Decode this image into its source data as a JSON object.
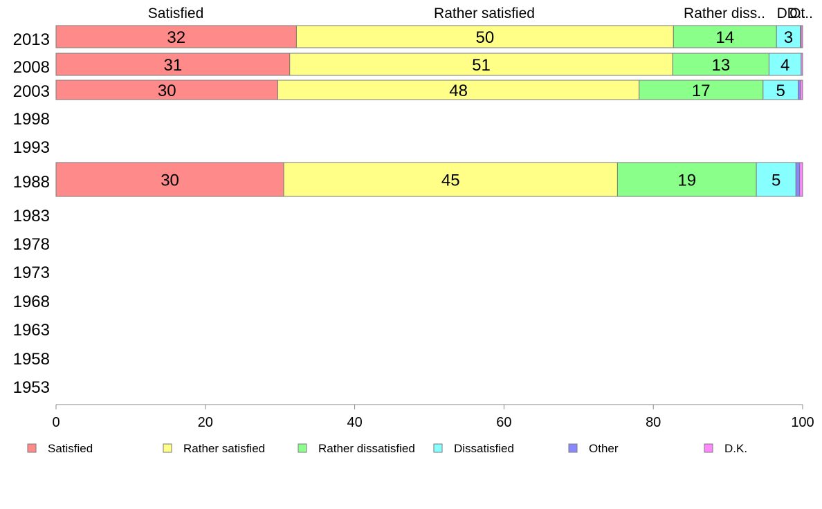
{
  "chart_data": {
    "type": "bar",
    "orientation": "horizontal",
    "stacked": true,
    "categories": [
      "2013",
      "2008",
      "2003",
      "1998",
      "1993",
      "1988",
      "1983",
      "1978",
      "1973",
      "1968",
      "1963",
      "1958",
      "1953"
    ],
    "series": [
      {
        "name": "Satisfied",
        "color": "#ff8a8a",
        "values": [
          32.2,
          31.3,
          29.7,
          null,
          null,
          30.5,
          null,
          null,
          null,
          null,
          null,
          null,
          null
        ]
      },
      {
        "name": "Rather satisfied",
        "color": "#ffff88",
        "values": [
          50.5,
          51.3,
          48.4,
          null,
          null,
          44.7,
          null,
          null,
          null,
          null,
          null,
          null,
          null
        ]
      },
      {
        "name": "Rather dissatisfied",
        "color": "#8aff8a",
        "values": [
          13.8,
          12.9,
          16.6,
          null,
          null,
          18.6,
          null,
          null,
          null,
          null,
          null,
          null,
          null
        ]
      },
      {
        "name": "Dissatisfied",
        "color": "#88ffff",
        "values": [
          3.2,
          4.3,
          4.7,
          null,
          null,
          5.3,
          null,
          null,
          null,
          null,
          null,
          null,
          null
        ]
      },
      {
        "name": "Other",
        "color": "#8888ff",
        "values": [
          0.1,
          0.0,
          0.3,
          null,
          null,
          0.5,
          null,
          null,
          null,
          null,
          null,
          null,
          null
        ]
      },
      {
        "name": "D.K.",
        "color": "#ff88ff",
        "values": [
          0.2,
          0.2,
          0.3,
          null,
          null,
          0.4,
          null,
          null,
          null,
          null,
          null,
          null,
          null
        ]
      }
    ],
    "data_labels": [
      [
        "32",
        "50",
        "14",
        "3",
        "",
        ""
      ],
      [
        "31",
        "51",
        "13",
        "4",
        "",
        ""
      ],
      [
        "30",
        "48",
        "17",
        "5",
        "",
        ""
      ],
      [
        "",
        "",
        "",
        "",
        "",
        ""
      ],
      [
        "",
        "",
        "",
        "",
        "",
        ""
      ],
      [
        "30",
        "45",
        "19",
        "5",
        "",
        ""
      ],
      [
        "",
        "",
        "",
        "",
        "",
        ""
      ],
      [
        "",
        "",
        "",
        "",
        "",
        ""
      ],
      [
        "",
        "",
        "",
        "",
        "",
        ""
      ],
      [
        "",
        "",
        "",
        "",
        "",
        ""
      ],
      [
        "",
        "",
        "",
        "",
        "",
        ""
      ],
      [
        "",
        "",
        "",
        "",
        "",
        ""
      ],
      [
        "",
        "",
        "",
        "",
        "",
        ""
      ]
    ],
    "top_labels": [
      "Satisfied",
      "Rather satisfied",
      "Rather diss..",
      "D..",
      "D..",
      "Ot.."
    ],
    "xlim": [
      0,
      100
    ],
    "xticks": [
      "0",
      "20",
      "40",
      "60",
      "80",
      "100"
    ],
    "grid": false,
    "legend_position": "bottom",
    "legend_labels": [
      "Satisfied",
      "Rather satisfied",
      "Rather dissatisfied",
      "Dissatisfied",
      "Other",
      "D.K."
    ]
  }
}
